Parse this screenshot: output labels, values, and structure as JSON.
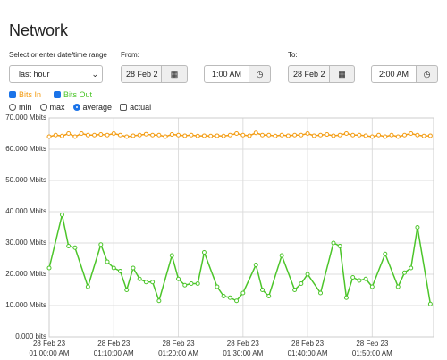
{
  "header": {
    "title": "Network"
  },
  "form": {
    "range_label": "Select or enter date/time range",
    "range_value": "last hour",
    "from_label": "From:",
    "from_date": "28 Feb 2",
    "from_time": "1:00 AM",
    "to_label": "To:",
    "to_date": "28 Feb 2",
    "to_time": "2:00 AM"
  },
  "options": {
    "modes": [
      "min",
      "max",
      "average"
    ],
    "selected_mode": 2,
    "actual": "actual"
  },
  "chart_data": {
    "type": "line",
    "grid": true,
    "xlim": [
      0,
      59.5
    ],
    "xticks": [
      {
        "value": 0,
        "label": [
          "28 Feb 23",
          "01:00:00 AM"
        ]
      },
      {
        "value": 10,
        "label": [
          "28 Feb 23",
          "01:10:00 AM"
        ]
      },
      {
        "value": 20,
        "label": [
          "28 Feb 23",
          "01:20:00 AM"
        ]
      },
      {
        "value": 30,
        "label": [
          "28 Feb 23",
          "01:30:00 AM"
        ]
      },
      {
        "value": 40,
        "label": [
          "28 Feb 23",
          "01:40:00 AM"
        ]
      },
      {
        "value": 50,
        "label": [
          "28 Feb 23",
          "01:50:00 AM"
        ]
      }
    ],
    "ylim": [
      0,
      70
    ],
    "yticks": [
      {
        "value": 0,
        "label": "0.000 bits"
      },
      {
        "value": 10,
        "label": "10.000 Mbits"
      },
      {
        "value": 20,
        "label": "20.000 Mbits"
      },
      {
        "value": 30,
        "label": "30.000 Mbits"
      },
      {
        "value": 40,
        "label": "40.000 Mbits"
      },
      {
        "value": 50,
        "label": "50.000 Mbits"
      },
      {
        "value": 60,
        "label": "60.000 Mbits"
      },
      {
        "value": 70,
        "label": "70.000 Mbits"
      }
    ],
    "series": [
      {
        "name": "Bits In",
        "color": "#f39c12",
        "x": [
          0,
          1,
          2,
          3,
          4,
          5,
          6,
          7,
          8,
          9,
          10,
          11,
          12,
          13,
          14,
          15,
          16,
          17,
          18,
          19,
          20,
          21,
          22,
          23,
          24,
          25,
          26,
          27,
          28,
          29,
          30,
          31,
          32,
          33,
          34,
          35,
          36,
          37,
          38,
          39,
          40,
          41,
          42,
          43,
          44,
          45,
          46,
          47,
          48,
          49,
          50,
          51,
          52,
          53,
          54,
          55,
          56,
          57,
          58,
          59
        ],
        "values": [
          64,
          64.5,
          64.2,
          65,
          64,
          65,
          64.5,
          64.5,
          64.7,
          64.5,
          65,
          64.5,
          64,
          64.3,
          64.5,
          64.8,
          64.5,
          64.5,
          64,
          64.7,
          64.5,
          64.3,
          64.5,
          64.2,
          64.3,
          64.2,
          64.3,
          64.2,
          64.5,
          65,
          64.5,
          64.3,
          65.2,
          64.5,
          64.5,
          64.2,
          64.5,
          64.3,
          64.5,
          64.5,
          65,
          64.3,
          64.5,
          64.7,
          64.3,
          64.5,
          65,
          64.5,
          64.5,
          64.3,
          64,
          64.5,
          64,
          64.5,
          64,
          64.5,
          65,
          64.5,
          64.2,
          64.3
        ]
      },
      {
        "name": "Bits Out",
        "color": "#4cc52a",
        "x": [
          0,
          2,
          3,
          4,
          6,
          8,
          9,
          10,
          11,
          12,
          13,
          14,
          15,
          16,
          17,
          19,
          20,
          21,
          22,
          23,
          24,
          26,
          27,
          28,
          29,
          30,
          32,
          33,
          34,
          36,
          38,
          39,
          40,
          42,
          44,
          45,
          46,
          47,
          48,
          49,
          50,
          52,
          54,
          55,
          56,
          57,
          59
        ],
        "values": [
          22,
          39,
          29,
          28.5,
          16,
          29.5,
          24,
          22,
          21,
          15,
          22,
          18.5,
          17.5,
          17.5,
          11.5,
          26,
          18.5,
          16.5,
          17,
          17,
          27,
          16,
          13,
          12.5,
          11.5,
          14,
          23,
          15,
          13,
          26,
          15,
          17,
          20,
          14,
          30,
          29,
          12.5,
          19,
          18,
          18.5,
          16,
          26.5,
          16,
          20.5,
          22,
          35,
          10.5
        ]
      }
    ]
  }
}
